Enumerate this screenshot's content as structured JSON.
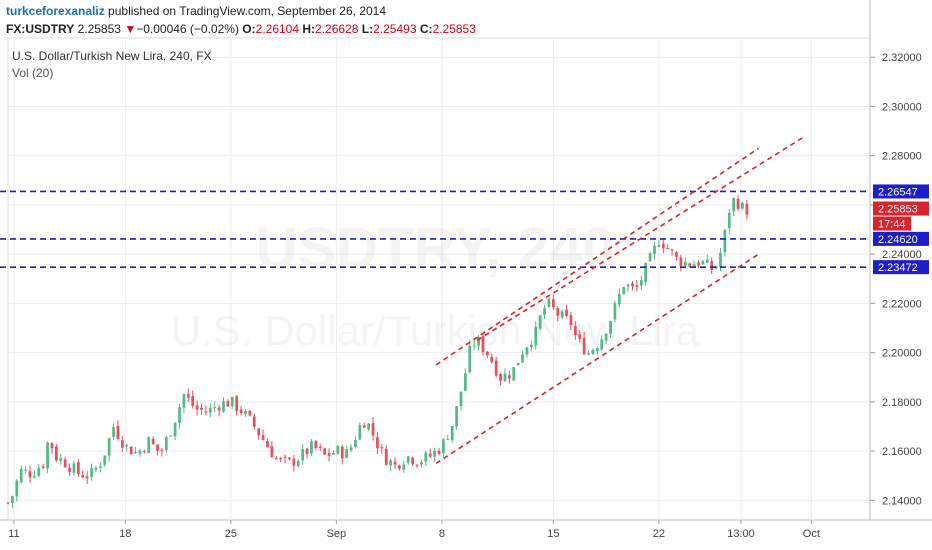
{
  "header": {
    "author": "turkceforexanaliz",
    "rest": " published on TradingView.com, September 26, 2014"
  },
  "quote": {
    "symbol": "FX:USDTRY",
    "last": "2.25853",
    "arrow": "▼",
    "change": "−0.00046 (−0.02%)",
    "open_label": "O:",
    "open": "2.26104",
    "high_label": "H:",
    "high": "2.26628",
    "low_label": "L:",
    "low": "2.25493",
    "close_label": "C:",
    "close": "2.25853"
  },
  "title": "U.S. Dollar/Turkish New Lira, 240, FX",
  "vol_label": "Vol (20)",
  "watermark_top": "USDTRY, 240",
  "watermark_bottom": "U.S. Dollar/Turkish New Lira",
  "colors": {
    "up": "#53b987",
    "down": "#eb4d5c",
    "hline": "#1d1dcc",
    "channel": "#e02020",
    "grid": "#ececec",
    "label_blue": "#1d1dcc",
    "label_red": "#d9232d"
  },
  "chart_data": {
    "type": "candlestick",
    "title": "U.S. Dollar/Turkish New Lira, 240, FX",
    "y_range": [
      2.132,
      2.327
    ],
    "y_ticks": [
      "2.32000",
      "2.30000",
      "2.28000",
      "2.26000",
      "2.24000",
      "2.22000",
      "2.20000",
      "2.18000",
      "2.16000",
      "2.14000"
    ],
    "x_range": [
      0,
      147
    ],
    "x_ticks": [
      {
        "label": "11",
        "x": 1
      },
      {
        "label": "18",
        "x": 20
      },
      {
        "label": "25",
        "x": 38
      },
      {
        "label": "Sep",
        "x": 56
      },
      {
        "label": "8",
        "x": 74
      },
      {
        "label": "15",
        "x": 93
      },
      {
        "label": "22",
        "x": 111
      },
      {
        "label": "13:00",
        "x": 125
      },
      {
        "label": "Oct",
        "x": 137
      }
    ],
    "close_trend": [
      [
        0,
        2.139
      ],
      [
        1,
        2.143
      ],
      [
        2,
        2.152
      ],
      [
        4,
        2.151
      ],
      [
        6,
        2.155
      ],
      [
        7,
        2.166
      ],
      [
        8,
        2.158
      ],
      [
        10,
        2.155
      ],
      [
        12,
        2.151
      ],
      [
        14,
        2.15
      ],
      [
        16,
        2.156
      ],
      [
        18,
        2.17
      ],
      [
        20,
        2.162
      ],
      [
        22,
        2.159
      ],
      [
        24,
        2.164
      ],
      [
        26,
        2.159
      ],
      [
        28,
        2.17
      ],
      [
        30,
        2.183
      ],
      [
        32,
        2.177
      ],
      [
        34,
        2.176
      ],
      [
        36,
        2.179
      ],
      [
        38,
        2.18
      ],
      [
        40,
        2.176
      ],
      [
        42,
        2.17
      ],
      [
        44,
        2.163
      ],
      [
        46,
        2.156
      ],
      [
        48,
        2.155
      ],
      [
        50,
        2.158
      ],
      [
        52,
        2.162
      ],
      [
        54,
        2.158
      ],
      [
        56,
        2.16
      ],
      [
        58,
        2.159
      ],
      [
        60,
        2.17
      ],
      [
        61,
        2.173
      ],
      [
        62,
        2.168
      ],
      [
        64,
        2.158
      ],
      [
        66,
        2.154
      ],
      [
        68,
        2.158
      ],
      [
        70,
        2.156
      ],
      [
        72,
        2.158
      ],
      [
        74,
        2.162
      ],
      [
        76,
        2.172
      ],
      [
        78,
        2.192
      ],
      [
        79,
        2.203
      ],
      [
        80,
        2.205
      ],
      [
        82,
        2.199
      ],
      [
        84,
        2.19
      ],
      [
        86,
        2.192
      ],
      [
        88,
        2.202
      ],
      [
        90,
        2.208
      ],
      [
        91,
        2.216
      ],
      [
        92,
        2.22
      ],
      [
        94,
        2.215
      ],
      [
        96,
        2.212
      ],
      [
        97,
        2.205
      ],
      [
        99,
        2.2
      ],
      [
        101,
        2.205
      ],
      [
        103,
        2.215
      ],
      [
        105,
        2.228
      ],
      [
        107,
        2.225
      ],
      [
        109,
        2.235
      ],
      [
        111,
        2.246
      ],
      [
        112,
        2.244
      ],
      [
        114,
        2.238
      ],
      [
        116,
        2.236
      ],
      [
        118,
        2.237
      ],
      [
        120,
        2.234
      ],
      [
        121,
        2.236
      ],
      [
        122,
        2.245
      ],
      [
        123,
        2.258
      ],
      [
        124,
        2.263
      ],
      [
        125,
        2.259
      ],
      [
        126,
        2.258
      ]
    ],
    "horizontal_levels": [
      {
        "value": 2.26547,
        "label": "2.26547",
        "color": "#1d1dcc"
      },
      {
        "value": 2.2462,
        "label": "2.24620",
        "color": "#1d1dcc"
      },
      {
        "value": 2.23472,
        "label": "2.23472",
        "color": "#1d1dcc"
      }
    ],
    "current_price": {
      "value": 2.25853,
      "label": "2.25853",
      "countdown": "17:44"
    },
    "channel_lines": [
      {
        "from": [
          73,
          2.195
        ],
        "to": [
          128,
          2.283
        ]
      },
      {
        "from": [
          73,
          2.155
        ],
        "to": [
          128,
          2.24
        ]
      },
      {
        "from": [
          80,
          2.205
        ],
        "to": [
          136,
          2.288
        ]
      }
    ]
  }
}
